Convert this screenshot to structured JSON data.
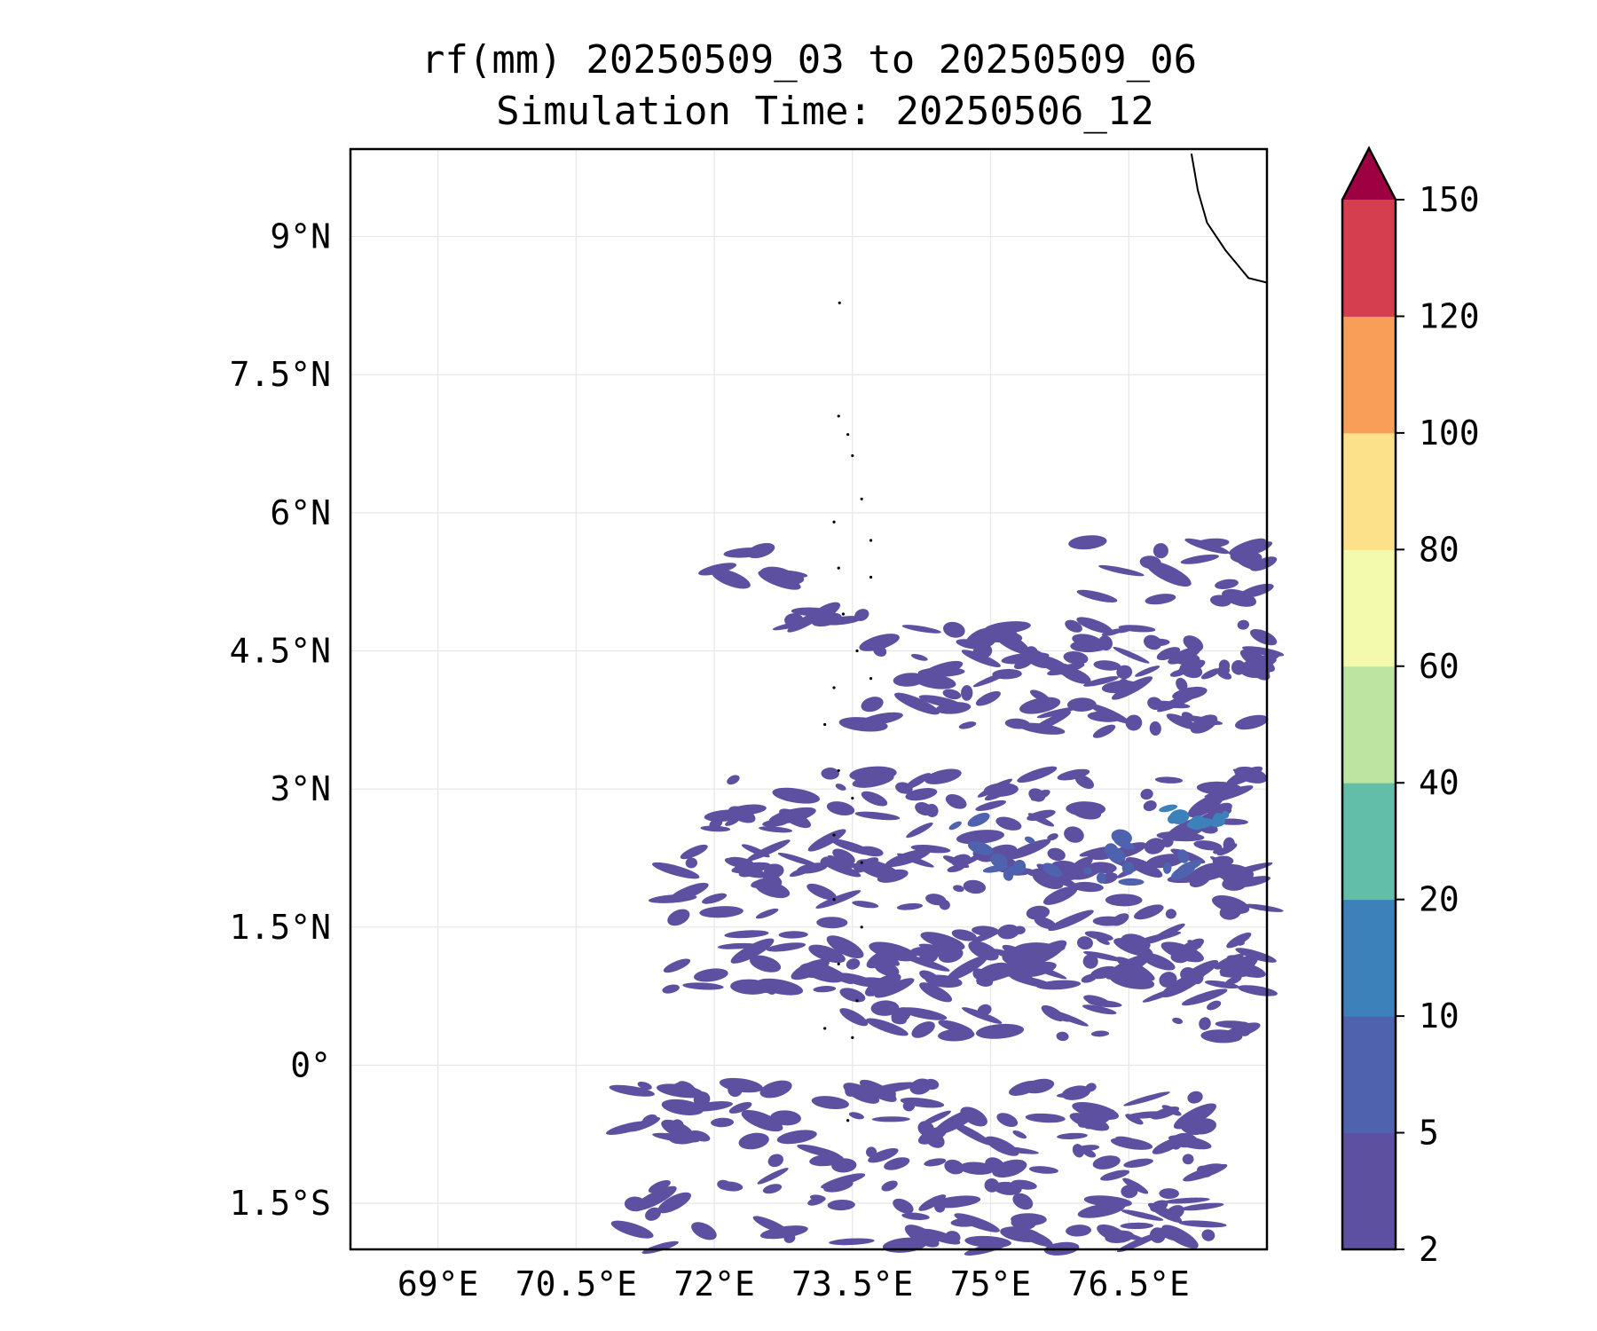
{
  "chart_data": {
    "type": "heatmap",
    "title": "rf(mm) 20250509_03 to 20250509_06",
    "subtitle": "Simulation Time: 20250506_12",
    "xlim": [
      68.05,
      78.0
    ],
    "ylim": [
      -2.0,
      9.95
    ],
    "x_ticks": [
      {
        "value": 69.0,
        "label": "69°E"
      },
      {
        "value": 70.5,
        "label": "70.5°E"
      },
      {
        "value": 72.0,
        "label": "72°E"
      },
      {
        "value": 73.5,
        "label": "73.5°E"
      },
      {
        "value": 75.0,
        "label": "75°E"
      },
      {
        "value": 76.5,
        "label": "76.5°E"
      }
    ],
    "y_ticks": [
      {
        "value": 9.0,
        "label": "9°N"
      },
      {
        "value": 7.5,
        "label": "7.5°N"
      },
      {
        "value": 6.0,
        "label": "6°N"
      },
      {
        "value": 4.5,
        "label": "4.5°N"
      },
      {
        "value": 3.0,
        "label": "3°N"
      },
      {
        "value": 1.5,
        "label": "1.5°N"
      },
      {
        "value": 0.0,
        "label": "0°"
      },
      {
        "value": -1.5,
        "label": "1.5°S"
      }
    ],
    "grid": true,
    "colorbar": {
      "levels": [
        2,
        5,
        10,
        20,
        40,
        60,
        80,
        100,
        120,
        150
      ],
      "labels": [
        "2",
        "5",
        "10",
        "20",
        "40",
        "60",
        "80",
        "100",
        "120",
        "150"
      ],
      "colors": [
        "#5e50a1",
        "#4f62ad",
        "#3c81b9",
        "#63bea9",
        "#bde4a0",
        "#f3faad",
        "#fde18a",
        "#f99e59",
        "#d53e4f"
      ],
      "extend_color": "#9e0142",
      "extend": "max"
    },
    "rain_bands": [
      {
        "lon": [
          71.9,
          73.1
        ],
        "lat": [
          5.2,
          5.6
        ],
        "level": 0
      },
      {
        "lon": [
          72.5,
          73.8
        ],
        "lat": [
          4.75,
          4.95
        ],
        "level": 0
      },
      {
        "lon": [
          73.9,
          78.0
        ],
        "lat": [
          4.1,
          4.8
        ],
        "level": 0
      },
      {
        "lon": [
          73.6,
          78.0
        ],
        "lat": [
          3.6,
          4.6
        ],
        "level": 0
      },
      {
        "lon": [
          76.0,
          78.0
        ],
        "lat": [
          5.0,
          5.7
        ],
        "level": 0
      },
      {
        "lon": [
          72.0,
          78.0
        ],
        "lat": [
          2.0,
          3.2
        ],
        "level": 0
      },
      {
        "lon": [
          71.5,
          78.0
        ],
        "lat": [
          0.8,
          2.4
        ],
        "level": 0
      },
      {
        "lon": [
          73.5,
          77.8
        ],
        "lat": [
          0.3,
          1.3
        ],
        "level": 0
      },
      {
        "lon": [
          71.0,
          77.5
        ],
        "lat": [
          -2.0,
          -0.2
        ],
        "level": 0
      },
      {
        "lon": [
          74.5,
          76.5
        ],
        "lat": [
          2.0,
          2.7
        ],
        "level": 1
      },
      {
        "lon": [
          76.2,
          77.2
        ],
        "lat": [
          1.9,
          2.6
        ],
        "level": 1
      },
      {
        "lon": [
          76.8,
          77.6
        ],
        "lat": [
          2.6,
          2.8
        ],
        "level": 2
      }
    ],
    "coastline": [
      [
        77.18,
        9.9
      ],
      [
        77.25,
        9.5
      ],
      [
        77.35,
        9.15
      ],
      [
        77.55,
        8.85
      ],
      [
        77.8,
        8.55
      ],
      [
        78.0,
        8.5
      ]
    ],
    "islands": [
      [
        73.36,
        8.28
      ],
      [
        73.35,
        7.05
      ],
      [
        73.45,
        6.85
      ],
      [
        73.5,
        6.62
      ],
      [
        73.6,
        6.15
      ],
      [
        73.7,
        5.7
      ],
      [
        73.3,
        5.9
      ],
      [
        73.35,
        5.4
      ],
      [
        73.7,
        5.3
      ],
      [
        73.4,
        4.9
      ],
      [
        73.55,
        4.5
      ],
      [
        73.7,
        4.2
      ],
      [
        73.3,
        4.1
      ],
      [
        73.2,
        3.7
      ],
      [
        73.35,
        3.2
      ],
      [
        73.5,
        2.9
      ],
      [
        73.3,
        2.5
      ],
      [
        73.6,
        2.2
      ],
      [
        73.3,
        1.8
      ],
      [
        73.6,
        1.5
      ],
      [
        73.35,
        1.1
      ],
      [
        73.55,
        0.7
      ],
      [
        73.2,
        0.4
      ],
      [
        73.5,
        0.3
      ],
      [
        73.45,
        -0.6
      ]
    ]
  }
}
